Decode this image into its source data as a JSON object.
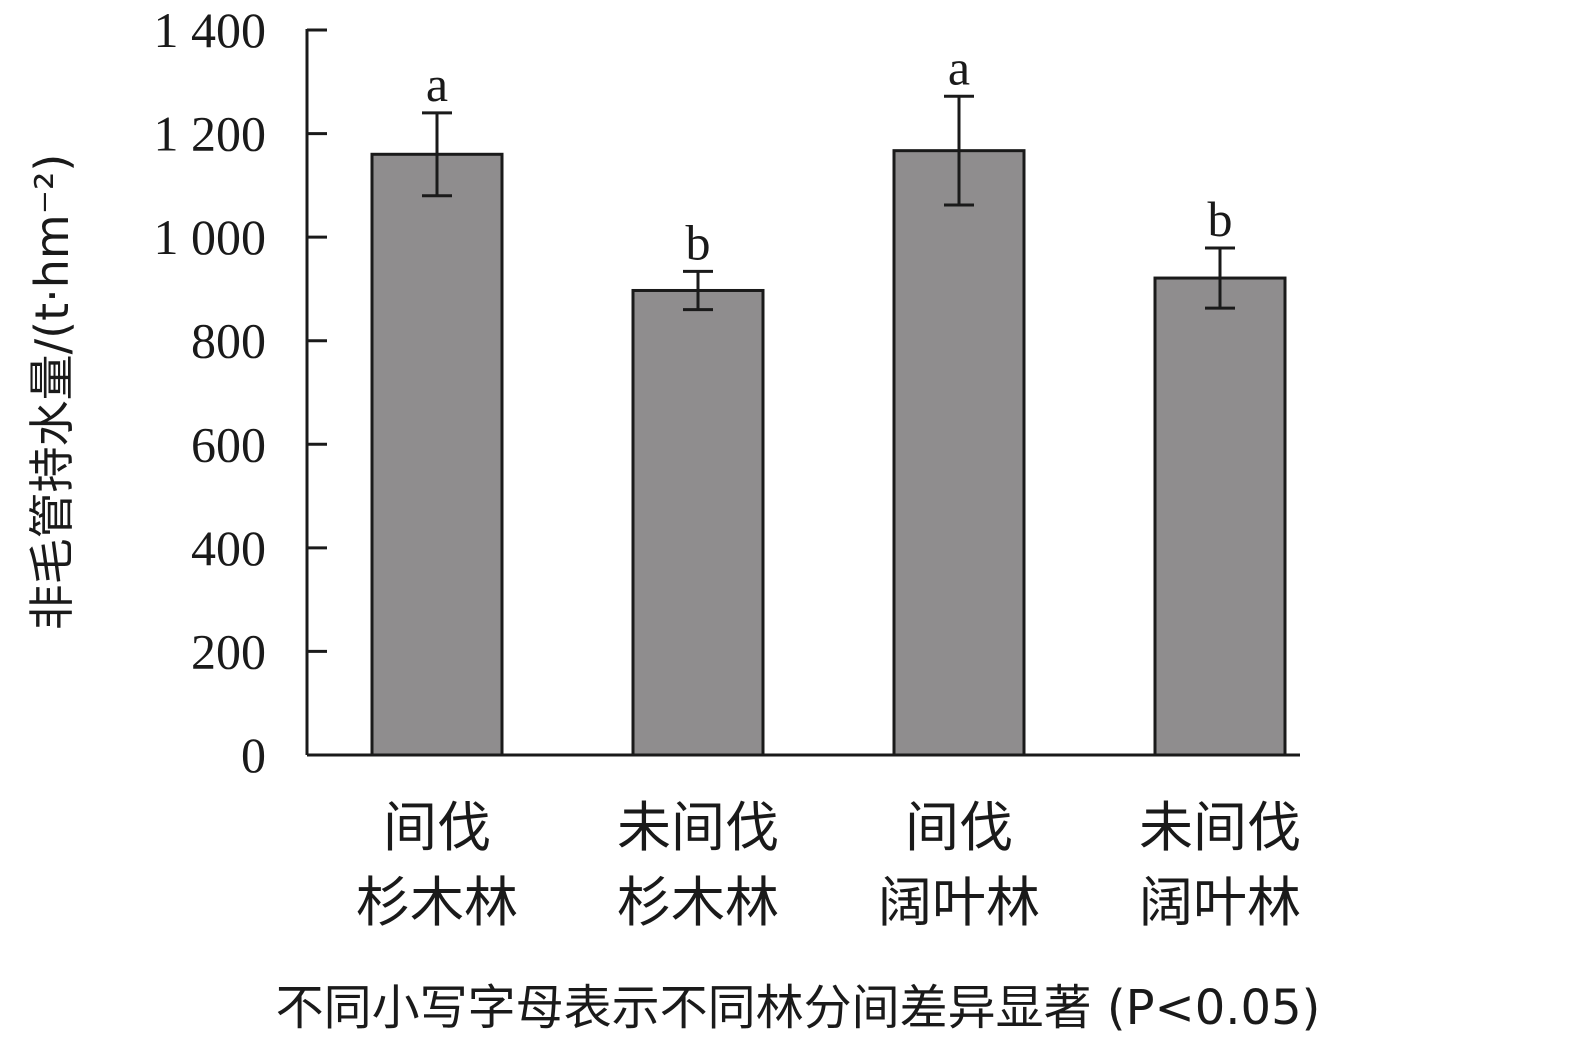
{
  "chart_data": {
    "type": "bar",
    "categories": [
      [
        "间伐",
        "杉木林"
      ],
      [
        "未间伐",
        "杉木林"
      ],
      [
        "间伐",
        "阔叶林"
      ],
      [
        "未间伐",
        "阔叶林"
      ]
    ],
    "values": [
      1160,
      897,
      1167,
      921
    ],
    "errors": [
      80,
      37,
      105,
      58
    ],
    "significance": [
      "a",
      "b",
      "a",
      "b"
    ],
    "ylabel": "非毛管持水量/(t·hm⁻²)",
    "caption": "不同小写字母表示不同林分间差异显著 (P<0.05)",
    "ylim": [
      0,
      1400
    ],
    "yticks": [
      {
        "value": 0,
        "label": "0"
      },
      {
        "value": 200,
        "label": "200"
      },
      {
        "value": 400,
        "label": "400"
      },
      {
        "value": 600,
        "label": "600"
      },
      {
        "value": 800,
        "label": "800"
      },
      {
        "value": 1000,
        "label": "1 000"
      },
      {
        "value": 1200,
        "label": "1 200"
      },
      {
        "value": 1400,
        "label": "1 400"
      }
    ],
    "bar_color": "#8f8d8e",
    "edge_color": "#1a1a1a",
    "grid": false
  }
}
